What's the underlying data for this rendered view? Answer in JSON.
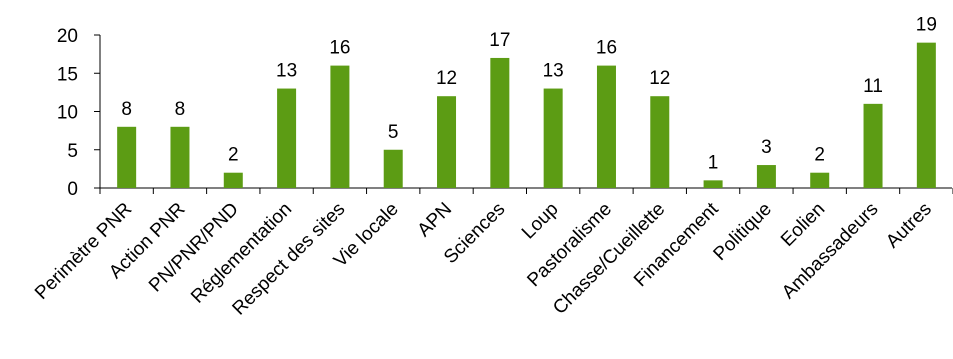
{
  "chart_data": {
    "type": "bar",
    "title": "",
    "xlabel": "",
    "ylabel": "",
    "categories": [
      "Perimètre PNR",
      "Action PNR",
      "PN/PNR/PND",
      "Réglementation",
      "Respect des sites",
      "Vie locale",
      "APN",
      "Sciences",
      "Loup",
      "Pastoralisme",
      "Chasse/Cueillette",
      "Financement",
      "Politique",
      "Eolien",
      "Ambassadeurs",
      "Autres"
    ],
    "values": [
      8,
      8,
      2,
      13,
      16,
      5,
      12,
      17,
      13,
      16,
      12,
      1,
      3,
      2,
      11,
      19
    ],
    "ylim": [
      0,
      20
    ],
    "yticks": [
      0,
      5,
      10,
      15,
      20
    ],
    "bar_color": "#5c9c14",
    "grid": false,
    "legend": "none",
    "data_labels": true
  }
}
